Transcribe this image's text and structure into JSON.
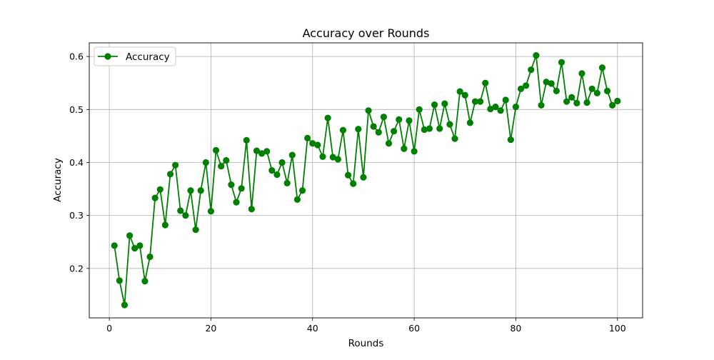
{
  "chart_data": {
    "type": "line",
    "title": "Accuracy over Rounds",
    "xlabel": "Rounds",
    "ylabel": "Accuracy",
    "xlim": [
      -3.95,
      104.95
    ],
    "ylim": [
      0.1067,
      0.6258
    ],
    "xticks": [
      0,
      20,
      40,
      60,
      80,
      100
    ],
    "yticks": [
      0.2,
      0.3,
      0.4,
      0.5,
      0.6
    ],
    "grid": true,
    "legend_position": "top-left",
    "color": "#008000",
    "marker": "circle",
    "series": [
      {
        "name": "Accuracy",
        "x": [
          1,
          2,
          3,
          4,
          5,
          6,
          7,
          8,
          9,
          10,
          11,
          12,
          13,
          14,
          15,
          16,
          17,
          18,
          19,
          20,
          21,
          22,
          23,
          24,
          25,
          26,
          27,
          28,
          29,
          30,
          31,
          32,
          33,
          34,
          35,
          36,
          37,
          38,
          39,
          40,
          41,
          42,
          43,
          44,
          45,
          46,
          47,
          48,
          49,
          50,
          51,
          52,
          53,
          54,
          55,
          56,
          57,
          58,
          59,
          60,
          61,
          62,
          63,
          64,
          65,
          66,
          67,
          68,
          69,
          70,
          71,
          72,
          73,
          74,
          75,
          76,
          77,
          78,
          79,
          80,
          81,
          82,
          83,
          84,
          85,
          86,
          87,
          88,
          89,
          90,
          91,
          92,
          93,
          94,
          95,
          96,
          97,
          98,
          99,
          100
        ],
        "values": [
          0.243,
          0.177,
          0.131,
          0.262,
          0.238,
          0.243,
          0.176,
          0.222,
          0.333,
          0.349,
          0.282,
          0.378,
          0.395,
          0.309,
          0.3,
          0.347,
          0.273,
          0.347,
          0.4,
          0.308,
          0.423,
          0.393,
          0.404,
          0.358,
          0.325,
          0.351,
          0.442,
          0.312,
          0.422,
          0.417,
          0.421,
          0.385,
          0.377,
          0.4,
          0.361,
          0.414,
          0.33,
          0.347,
          0.446,
          0.436,
          0.433,
          0.411,
          0.484,
          0.41,
          0.406,
          0.461,
          0.376,
          0.36,
          0.463,
          0.372,
          0.498,
          0.468,
          0.457,
          0.486,
          0.436,
          0.459,
          0.481,
          0.426,
          0.479,
          0.421,
          0.5,
          0.462,
          0.464,
          0.509,
          0.464,
          0.511,
          0.472,
          0.445,
          0.534,
          0.527,
          0.475,
          0.515,
          0.515,
          0.55,
          0.501,
          0.505,
          0.498,
          0.518,
          0.443,
          0.505,
          0.539,
          0.545,
          0.575,
          0.602,
          0.508,
          0.552,
          0.549,
          0.535,
          0.589,
          0.515,
          0.523,
          0.512,
          0.568,
          0.513,
          0.539,
          0.531,
          0.579,
          0.535,
          0.508,
          0.516
        ]
      }
    ]
  }
}
